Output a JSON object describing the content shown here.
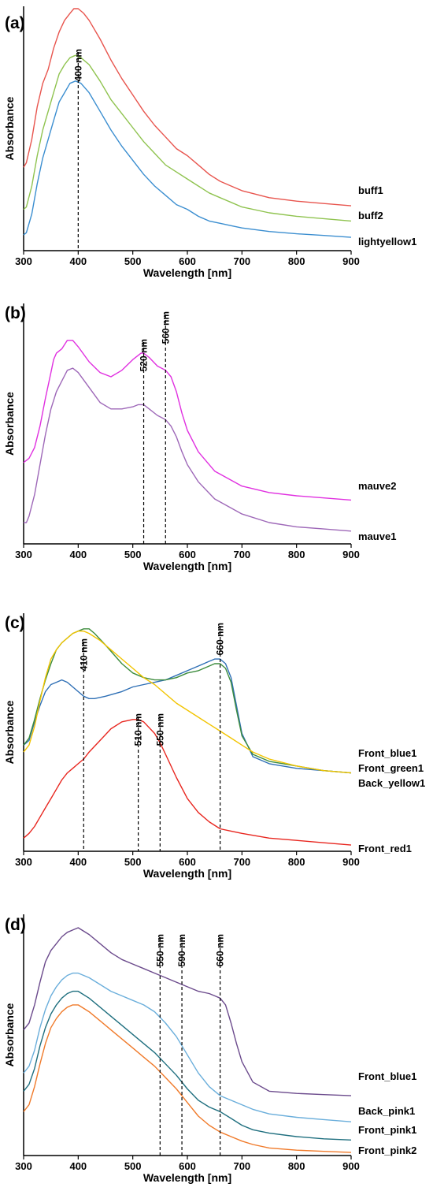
{
  "chart_data": [
    {
      "type": "line",
      "panel_label": "(a)",
      "xlabel": "Wavelength [nm]",
      "ylabel": "Absorbance",
      "xlim": [
        300,
        900
      ],
      "ylim": [
        0,
        1
      ],
      "x_ticks": [
        300,
        400,
        500,
        600,
        700,
        800,
        900
      ],
      "x_tick_labels": [
        "300",
        "400",
        "500",
        "600",
        "700",
        "800",
        "900"
      ],
      "grid": false,
      "y_ticks_shown": false,
      "legend": "series labels at right end of curves",
      "peak_markers": [
        {
          "x": 400,
          "label": "400 nm"
        }
      ],
      "series": [
        {
          "name": "buff1",
          "color": "#e8554e",
          "x": [
            300,
            305,
            315,
            325,
            335,
            345,
            355,
            365,
            375,
            385,
            392,
            400,
            410,
            420,
            440,
            460,
            480,
            500,
            520,
            540,
            560,
            580,
            600,
            620,
            640,
            660,
            680,
            700,
            750,
            800,
            850,
            900
          ],
          "y": [
            0.32,
            0.34,
            0.44,
            0.58,
            0.68,
            0.74,
            0.83,
            0.9,
            0.95,
            0.98,
            1.0,
            1.0,
            0.98,
            0.95,
            0.87,
            0.78,
            0.7,
            0.63,
            0.56,
            0.5,
            0.45,
            0.4,
            0.37,
            0.33,
            0.29,
            0.26,
            0.24,
            0.22,
            0.19,
            0.175,
            0.165,
            0.155
          ]
        },
        {
          "name": "buff2",
          "color": "#8fc34f",
          "x": [
            300,
            305,
            315,
            325,
            335,
            345,
            355,
            365,
            375,
            385,
            395,
            405,
            420,
            440,
            460,
            480,
            500,
            520,
            540,
            560,
            580,
            600,
            620,
            640,
            660,
            680,
            700,
            750,
            800,
            850,
            900
          ],
          "y": [
            0.14,
            0.15,
            0.24,
            0.37,
            0.48,
            0.56,
            0.64,
            0.72,
            0.76,
            0.79,
            0.8,
            0.79,
            0.76,
            0.69,
            0.61,
            0.55,
            0.49,
            0.43,
            0.38,
            0.33,
            0.3,
            0.27,
            0.24,
            0.21,
            0.19,
            0.17,
            0.15,
            0.125,
            0.11,
            0.1,
            0.09
          ]
        },
        {
          "name": "lightyellow1",
          "color": "#3b8ed0",
          "x": [
            300,
            305,
            315,
            325,
            335,
            345,
            355,
            365,
            375,
            385,
            395,
            405,
            420,
            440,
            460,
            480,
            500,
            520,
            540,
            560,
            580,
            600,
            620,
            640,
            660,
            680,
            700,
            750,
            800,
            850,
            900
          ],
          "y": [
            0.03,
            0.04,
            0.12,
            0.25,
            0.36,
            0.44,
            0.52,
            0.6,
            0.64,
            0.68,
            0.69,
            0.68,
            0.64,
            0.56,
            0.48,
            0.41,
            0.35,
            0.29,
            0.24,
            0.2,
            0.16,
            0.14,
            0.11,
            0.09,
            0.08,
            0.07,
            0.06,
            0.045,
            0.035,
            0.028,
            0.02
          ]
        }
      ]
    },
    {
      "type": "line",
      "panel_label": "(b)",
      "xlabel": "Wavelength [nm]",
      "ylabel": "Absorbance",
      "xlim": [
        300,
        900
      ],
      "ylim": [
        0,
        1
      ],
      "x_ticks": [
        300,
        400,
        500,
        600,
        700,
        800,
        900
      ],
      "x_tick_labels": [
        "300",
        "400",
        "500",
        "600",
        "700",
        "800",
        "900"
      ],
      "grid": false,
      "y_ticks_shown": false,
      "legend": "series labels at right end of curves",
      "peak_markers": [
        {
          "x": 520,
          "label": "520 nm"
        },
        {
          "x": 560,
          "label": "560 nm"
        }
      ],
      "series": [
        {
          "name": "mauve2",
          "color": "#e030e0",
          "x": [
            300,
            310,
            320,
            330,
            340,
            350,
            355,
            360,
            370,
            380,
            390,
            400,
            420,
            440,
            460,
            480,
            500,
            515,
            520,
            530,
            545,
            560,
            570,
            580,
            590,
            600,
            620,
            650,
            700,
            750,
            800,
            850,
            900
          ],
          "y": [
            0.35,
            0.37,
            0.42,
            0.52,
            0.65,
            0.77,
            0.83,
            0.86,
            0.88,
            0.92,
            0.92,
            0.89,
            0.82,
            0.77,
            0.75,
            0.78,
            0.83,
            0.86,
            0.86,
            0.84,
            0.8,
            0.78,
            0.75,
            0.68,
            0.58,
            0.5,
            0.4,
            0.31,
            0.24,
            0.21,
            0.195,
            0.185,
            0.175
          ]
        },
        {
          "name": "mauve1",
          "color": "#9e68b8",
          "x": [
            300,
            305,
            310,
            320,
            330,
            340,
            350,
            360,
            370,
            380,
            390,
            400,
            420,
            440,
            460,
            480,
            500,
            510,
            520,
            530,
            545,
            560,
            570,
            580,
            590,
            600,
            620,
            650,
            700,
            750,
            800,
            850,
            900
          ],
          "y": [
            0.07,
            0.07,
            0.1,
            0.2,
            0.34,
            0.48,
            0.6,
            0.68,
            0.73,
            0.78,
            0.79,
            0.77,
            0.7,
            0.63,
            0.6,
            0.6,
            0.61,
            0.62,
            0.62,
            0.6,
            0.57,
            0.55,
            0.52,
            0.47,
            0.4,
            0.34,
            0.26,
            0.18,
            0.11,
            0.07,
            0.05,
            0.04,
            0.03
          ]
        }
      ]
    },
    {
      "type": "line",
      "panel_label": "(c)",
      "xlabel": "Wavelength [nm]",
      "ylabel": "Absorbance",
      "xlim": [
        300,
        900
      ],
      "ylim": [
        0,
        1
      ],
      "x_ticks": [
        300,
        400,
        500,
        600,
        700,
        800,
        900
      ],
      "x_tick_labels": [
        "300",
        "400",
        "500",
        "600",
        "700",
        "800",
        "900"
      ],
      "grid": false,
      "y_ticks_shown": false,
      "legend": "series labels at right end of curves",
      "peak_markers": [
        {
          "x": 410,
          "label": "410 nm"
        },
        {
          "x": 510,
          "label": "510 nm"
        },
        {
          "x": 550,
          "label": "550 nm"
        },
        {
          "x": 660,
          "label": "660 nm"
        }
      ],
      "series": [
        {
          "name": "Front_blue1",
          "color": "#2e6fb5",
          "x": [
            300,
            310,
            320,
            330,
            340,
            350,
            360,
            370,
            380,
            390,
            400,
            410,
            420,
            430,
            450,
            480,
            500,
            520,
            540,
            560,
            580,
            600,
            620,
            640,
            650,
            660,
            670,
            680,
            690,
            700,
            720,
            750,
            800,
            850,
            900
          ],
          "y": [
            0.45,
            0.47,
            0.55,
            0.62,
            0.68,
            0.71,
            0.72,
            0.73,
            0.72,
            0.7,
            0.68,
            0.66,
            0.65,
            0.65,
            0.66,
            0.68,
            0.7,
            0.71,
            0.72,
            0.73,
            0.75,
            0.77,
            0.79,
            0.81,
            0.82,
            0.82,
            0.8,
            0.74,
            0.62,
            0.5,
            0.4,
            0.37,
            0.35,
            0.34,
            0.33
          ]
        },
        {
          "name": "Front_green1",
          "color": "#3d8c3d",
          "x": [
            300,
            310,
            320,
            330,
            340,
            350,
            360,
            370,
            380,
            390,
            400,
            410,
            420,
            430,
            450,
            480,
            500,
            520,
            540,
            560,
            580,
            600,
            620,
            640,
            650,
            660,
            670,
            680,
            690,
            700,
            720,
            750,
            800,
            850,
            900
          ],
          "y": [
            0.45,
            0.48,
            0.56,
            0.65,
            0.73,
            0.8,
            0.86,
            0.89,
            0.91,
            0.93,
            0.94,
            0.95,
            0.95,
            0.93,
            0.88,
            0.8,
            0.76,
            0.74,
            0.73,
            0.73,
            0.74,
            0.76,
            0.77,
            0.79,
            0.8,
            0.8,
            0.78,
            0.72,
            0.6,
            0.49,
            0.41,
            0.38,
            0.36,
            0.34,
            0.33
          ]
        },
        {
          "name": "Back_yellow1",
          "color": "#f2c400",
          "x": [
            300,
            310,
            320,
            330,
            340,
            350,
            360,
            370,
            380,
            390,
            400,
            410,
            420,
            440,
            460,
            480,
            500,
            520,
            540,
            560,
            580,
            600,
            620,
            640,
            660,
            680,
            700,
            720,
            750,
            800,
            850,
            900
          ],
          "y": [
            0.42,
            0.45,
            0.53,
            0.64,
            0.74,
            0.82,
            0.86,
            0.89,
            0.91,
            0.93,
            0.94,
            0.94,
            0.93,
            0.9,
            0.86,
            0.82,
            0.78,
            0.74,
            0.71,
            0.67,
            0.63,
            0.6,
            0.57,
            0.54,
            0.51,
            0.48,
            0.45,
            0.42,
            0.39,
            0.36,
            0.34,
            0.33
          ]
        },
        {
          "name": "Front_red1",
          "color": "#e8261f",
          "x": [
            300,
            310,
            320,
            330,
            340,
            350,
            360,
            370,
            380,
            390,
            400,
            410,
            420,
            440,
            460,
            480,
            500,
            510,
            520,
            540,
            550,
            560,
            580,
            600,
            620,
            640,
            660,
            680,
            700,
            750,
            800,
            850,
            900
          ],
          "y": [
            0.05,
            0.07,
            0.1,
            0.14,
            0.18,
            0.22,
            0.26,
            0.3,
            0.33,
            0.35,
            0.37,
            0.39,
            0.42,
            0.47,
            0.52,
            0.55,
            0.56,
            0.56,
            0.55,
            0.5,
            0.46,
            0.41,
            0.31,
            0.22,
            0.16,
            0.12,
            0.09,
            0.08,
            0.07,
            0.05,
            0.04,
            0.03,
            0.02
          ]
        }
      ]
    },
    {
      "type": "line",
      "panel_label": "(d)",
      "xlabel": "Wavelength [nm]",
      "ylabel": "Absorbance",
      "xlim": [
        300,
        900
      ],
      "ylim": [
        0,
        1
      ],
      "x_ticks": [
        300,
        400,
        500,
        600,
        700,
        800,
        900
      ],
      "x_tick_labels": [
        "300",
        "400",
        "500",
        "600",
        "700",
        "800",
        "900"
      ],
      "grid": false,
      "y_ticks_shown": false,
      "legend": "series labels at right end of curves",
      "peak_markers": [
        {
          "x": 550,
          "label": "550 nm"
        },
        {
          "x": 590,
          "label": "590 nm"
        },
        {
          "x": 660,
          "label": "660 nm"
        }
      ],
      "series": [
        {
          "name": "Front_blue1",
          "color": "#6b4a8c",
          "x": [
            300,
            310,
            320,
            330,
            340,
            350,
            360,
            370,
            380,
            390,
            400,
            420,
            440,
            460,
            480,
            500,
            520,
            540,
            560,
            580,
            600,
            620,
            640,
            650,
            660,
            670,
            680,
            690,
            700,
            720,
            750,
            800,
            850,
            900
          ],
          "y": [
            0.55,
            0.58,
            0.66,
            0.76,
            0.85,
            0.9,
            0.93,
            0.96,
            0.98,
            0.99,
            1.0,
            0.97,
            0.93,
            0.89,
            0.86,
            0.84,
            0.82,
            0.8,
            0.78,
            0.76,
            0.74,
            0.72,
            0.71,
            0.7,
            0.69,
            0.66,
            0.58,
            0.49,
            0.41,
            0.32,
            0.28,
            0.27,
            0.265,
            0.26
          ]
        },
        {
          "name": "Back_pink1",
          "color": "#6aaedb",
          "x": [
            300,
            310,
            320,
            330,
            340,
            350,
            360,
            370,
            380,
            390,
            400,
            420,
            440,
            460,
            480,
            500,
            520,
            540,
            560,
            580,
            600,
            620,
            640,
            660,
            680,
            700,
            720,
            750,
            800,
            850,
            900
          ],
          "y": [
            0.36,
            0.39,
            0.46,
            0.56,
            0.64,
            0.7,
            0.74,
            0.77,
            0.79,
            0.8,
            0.8,
            0.78,
            0.75,
            0.72,
            0.7,
            0.68,
            0.66,
            0.63,
            0.58,
            0.52,
            0.44,
            0.36,
            0.3,
            0.26,
            0.24,
            0.22,
            0.2,
            0.18,
            0.165,
            0.155,
            0.145
          ]
        },
        {
          "name": "Front_pink1",
          "color": "#1f6f7f",
          "x": [
            300,
            310,
            320,
            330,
            340,
            350,
            360,
            370,
            380,
            390,
            400,
            420,
            440,
            460,
            480,
            500,
            520,
            540,
            560,
            580,
            600,
            620,
            640,
            660,
            680,
            700,
            720,
            750,
            800,
            850,
            900
          ],
          "y": [
            0.28,
            0.31,
            0.38,
            0.48,
            0.56,
            0.62,
            0.66,
            0.69,
            0.71,
            0.72,
            0.72,
            0.69,
            0.65,
            0.61,
            0.57,
            0.53,
            0.49,
            0.45,
            0.4,
            0.35,
            0.29,
            0.24,
            0.21,
            0.19,
            0.16,
            0.13,
            0.11,
            0.095,
            0.08,
            0.07,
            0.065
          ]
        },
        {
          "name": "Front_pink2",
          "color": "#f07a2a",
          "x": [
            300,
            310,
            320,
            330,
            340,
            350,
            360,
            370,
            380,
            390,
            400,
            420,
            440,
            460,
            480,
            500,
            520,
            540,
            560,
            580,
            600,
            620,
            640,
            660,
            680,
            700,
            720,
            750,
            800,
            850,
            900
          ],
          "y": [
            0.19,
            0.22,
            0.3,
            0.4,
            0.49,
            0.56,
            0.6,
            0.63,
            0.65,
            0.66,
            0.66,
            0.63,
            0.59,
            0.55,
            0.51,
            0.47,
            0.43,
            0.39,
            0.34,
            0.29,
            0.23,
            0.17,
            0.13,
            0.1,
            0.08,
            0.06,
            0.045,
            0.03,
            0.02,
            0.015,
            0.01
          ]
        }
      ]
    }
  ]
}
